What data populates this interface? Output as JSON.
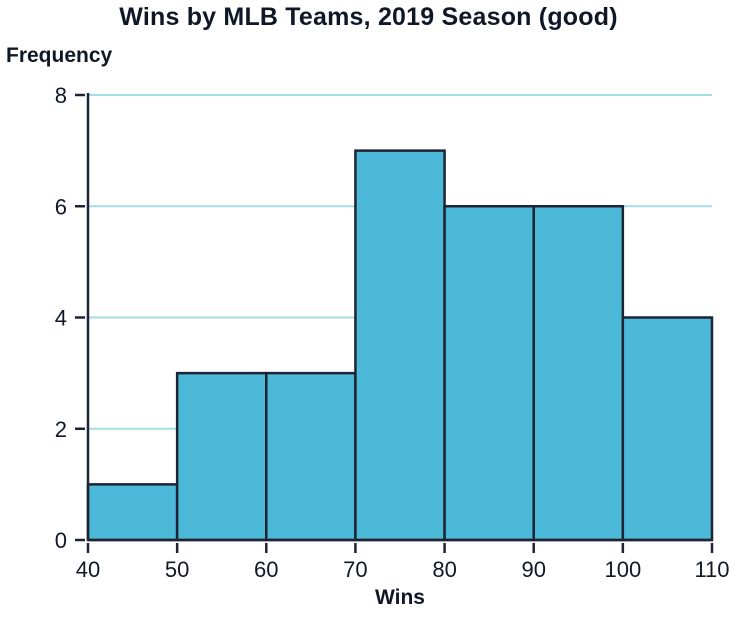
{
  "chart_data": {
    "type": "bar",
    "subtype": "histogram",
    "title": "Wins by MLB Teams, 2019 Season (good)",
    "xlabel": "Wins",
    "ylabel": "Frequency",
    "bin_edges": [
      40,
      50,
      60,
      70,
      80,
      90,
      100,
      110
    ],
    "values": [
      1,
      3,
      3,
      7,
      6,
      6,
      4
    ],
    "x_ticks": [
      40,
      50,
      60,
      70,
      80,
      90,
      100,
      110
    ],
    "y_ticks": [
      0,
      2,
      4,
      6,
      8
    ],
    "xlim": [
      40,
      110
    ],
    "ylim": [
      0,
      8
    ],
    "grid": "horizontal",
    "legend": "none",
    "colors": {
      "bar_fill": "#4cb9d9",
      "bar_stroke": "#1e2433",
      "grid": "#a6dbe9",
      "axis": "#1e2433",
      "text": "#101828"
    }
  }
}
